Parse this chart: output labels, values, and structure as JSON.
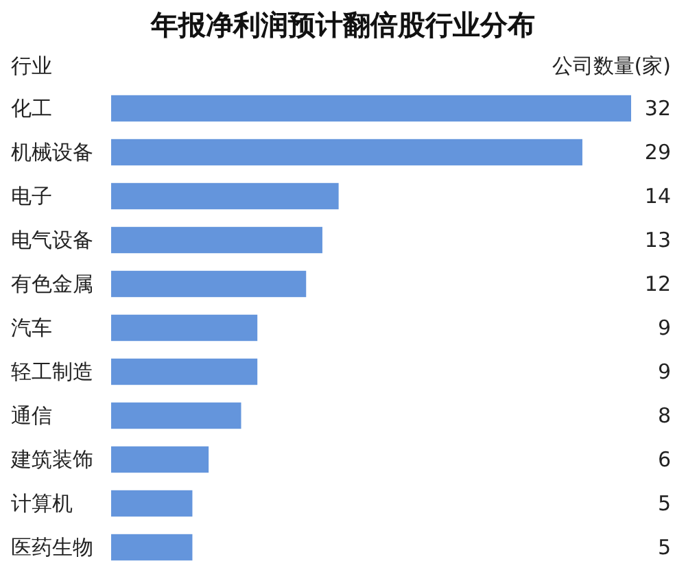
{
  "chart_data": {
    "type": "bar",
    "orientation": "horizontal",
    "title": "年报净利润预计翻倍股行业分布",
    "ylabel": "行业",
    "xlabel": "公司数量(家)",
    "categories": [
      "化工",
      "机械设备",
      "电子",
      "电气设备",
      "有色金属",
      "汽车",
      "轻工制造",
      "通信",
      "建筑装饰",
      "计算机",
      "医药生物"
    ],
    "values": [
      32,
      29,
      14,
      13,
      12,
      9,
      9,
      8,
      6,
      5,
      5
    ],
    "color": "#6495dc",
    "data_labels": true
  }
}
